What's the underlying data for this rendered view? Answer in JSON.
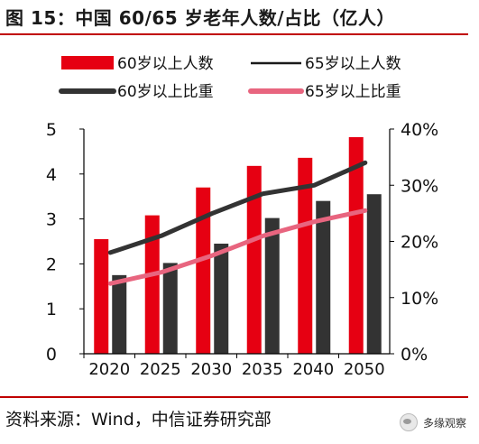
{
  "header": {
    "title": "图 15：中国 60/65 岁老年人数/占比（亿人）"
  },
  "footer": {
    "source": "资料来源：Wind，中信证券研究部",
    "brand": "多缘观察"
  },
  "colors": {
    "bar60": "#e60012",
    "bar65": "#333333",
    "line65num": "#1a1a1a",
    "line60pct": "#333333",
    "line65pct": "#e8657f",
    "accent": "#c00000"
  },
  "chart_data": {
    "type": "bar",
    "categories": [
      "2020",
      "2025",
      "2030",
      "2035",
      "2040",
      "2050"
    ],
    "left_axis": {
      "ylim": [
        0,
        5
      ],
      "ticks": [
        "0",
        "1",
        "2",
        "3",
        "4",
        "5"
      ]
    },
    "right_axis": {
      "ylim": [
        0,
        40
      ],
      "ticks": [
        "0%",
        "10%",
        "20%",
        "30%",
        "40%"
      ]
    },
    "series": [
      {
        "name": "60岁以上人数",
        "kind": "bar",
        "axis": "left",
        "values": [
          2.55,
          3.08,
          3.7,
          4.18,
          4.36,
          4.82
        ]
      },
      {
        "name": "65岁以上人数",
        "kind": "bar",
        "axis": "left",
        "values": [
          1.75,
          2.02,
          2.45,
          3.02,
          3.4,
          3.55
        ]
      },
      {
        "name": "60岁以上比重",
        "kind": "line",
        "axis": "right",
        "values": [
          18,
          21,
          25,
          28.5,
          30,
          34
        ]
      },
      {
        "name": "65岁以上比重",
        "kind": "line",
        "axis": "right",
        "values": [
          12.5,
          14.5,
          17.5,
          21,
          23.5,
          25.5
        ]
      }
    ],
    "legend": {
      "placement": "top"
    },
    "grid": false
  }
}
